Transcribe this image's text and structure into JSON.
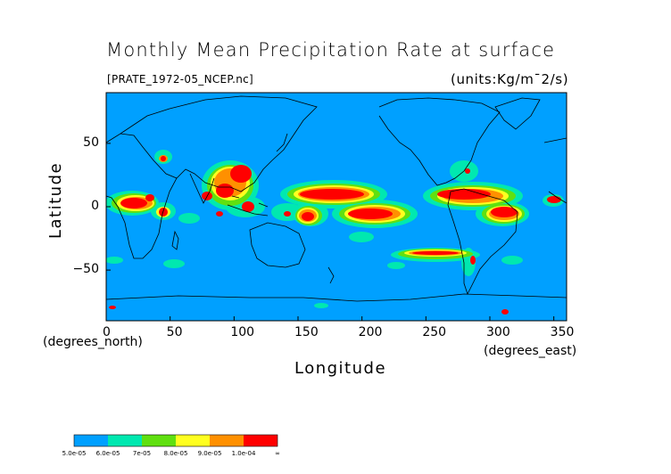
{
  "title": "Monthly Mean Precipitation Rate at surface",
  "file_label": "[PRATE_1972-05_NCEP.nc]",
  "units_label": "(units:Kg/m¯2/s)",
  "x_axis_title": "Longitude",
  "y_axis_title": "Latitude",
  "x_unit_label": "(degrees_north)",
  "y_unit_label": "(degrees_east)",
  "x_ticks": [
    "0",
    "50",
    "100",
    "150",
    "200",
    "250",
    "300",
    "350"
  ],
  "y_ticks": [
    "50",
    "0",
    "−50"
  ],
  "colors": {
    "background_field": "#00a0ff",
    "plot_border": "#000000"
  },
  "legend": {
    "labels": [
      "5.0e-05",
      "6.0e-05",
      "7e-05",
      "8.0e-05",
      "9.0e-05",
      "1.0e-04",
      "∞"
    ],
    "colors": [
      "#00a0ff",
      "#00e8b0",
      "#60e010",
      "#ffff20",
      "#ff9000",
      "#ff0000"
    ]
  },
  "chart_data": {
    "type": "heatmap",
    "title": "Monthly Mean Precipitation Rate at surface",
    "xlabel": "Longitude",
    "ylabel": "Latitude",
    "xlim": [
      0,
      360
    ],
    "ylim": [
      -90,
      90
    ],
    "x_ticks": [
      0,
      50,
      100,
      150,
      200,
      250,
      300,
      350
    ],
    "y_ticks": [
      50,
      0,
      -50
    ],
    "levels": [
      5e-05,
      6e-05,
      7e-05,
      8e-05,
      9e-05,
      0.0001
    ],
    "units": "Kg/m^-2/s",
    "source": "PRATE_1972-05_NCEP.nc"
  }
}
